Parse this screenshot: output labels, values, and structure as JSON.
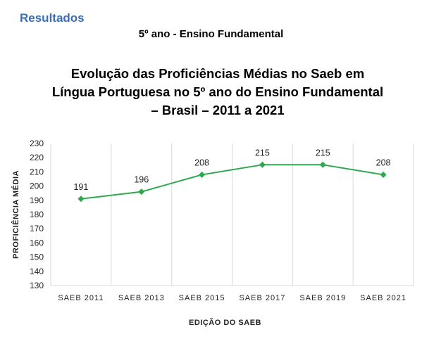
{
  "header": {
    "section": "Resultados",
    "subheading": "5º ano - Ensino Fundamental"
  },
  "chart_data": {
    "type": "line",
    "title": [
      "Evolução das Proficiências Médias no Saeb em",
      "Língua Portuguesa no 5º ano do Ensino Fundamental",
      "– Brasil – 2011 a 2021"
    ],
    "categories": [
      "SAEB 2011",
      "SAEB 2013",
      "SAEB 2015",
      "SAEB 2017",
      "SAEB 2019",
      "SAEB 2021"
    ],
    "values": [
      191,
      196,
      208,
      215,
      215,
      208
    ],
    "data_labels": [
      "191",
      "196",
      "208",
      "215",
      "215",
      "208"
    ],
    "y_ticks": [
      "130",
      "140",
      "150",
      "160",
      "170",
      "180",
      "190",
      "200",
      "210",
      "220",
      "230"
    ],
    "ylim": [
      130,
      230
    ],
    "xlabel": "EDIÇÃO DO SAEB",
    "ylabel": "PROFICIÊNCIA MÉDIA",
    "line_color": "#2ea84f",
    "grid": "vertical",
    "legend": "none"
  }
}
